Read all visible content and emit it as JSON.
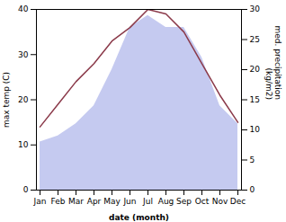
{
  "chart_data": {
    "type": "line",
    "categories": [
      "Jan",
      "Feb",
      "Mar",
      "Apr",
      "May",
      "Jun",
      "Jul",
      "Aug",
      "Sep",
      "Oct",
      "Nov",
      "Dec"
    ],
    "xlabel": "date (month)",
    "ylabel": "max temp (C)",
    "y2label": "med. precipitation\n(kg/m2)",
    "ylim": [
      0,
      40
    ],
    "yticks": [
      0,
      10,
      20,
      30,
      40
    ],
    "y2lim": [
      0,
      30
    ],
    "y2ticks": [
      0,
      5,
      10,
      15,
      20,
      25,
      30
    ],
    "series": [
      {
        "type": "area",
        "axis": "y2",
        "color": "#c5caf0",
        "values": [
          8,
          9,
          11,
          14,
          20,
          27,
          29,
          27,
          27,
          22,
          14,
          11
        ]
      },
      {
        "type": "line",
        "color": "#8b3a4a",
        "values": [
          14,
          19,
          24,
          28,
          33,
          36,
          40,
          39,
          35,
          28,
          21,
          15
        ]
      }
    ]
  }
}
